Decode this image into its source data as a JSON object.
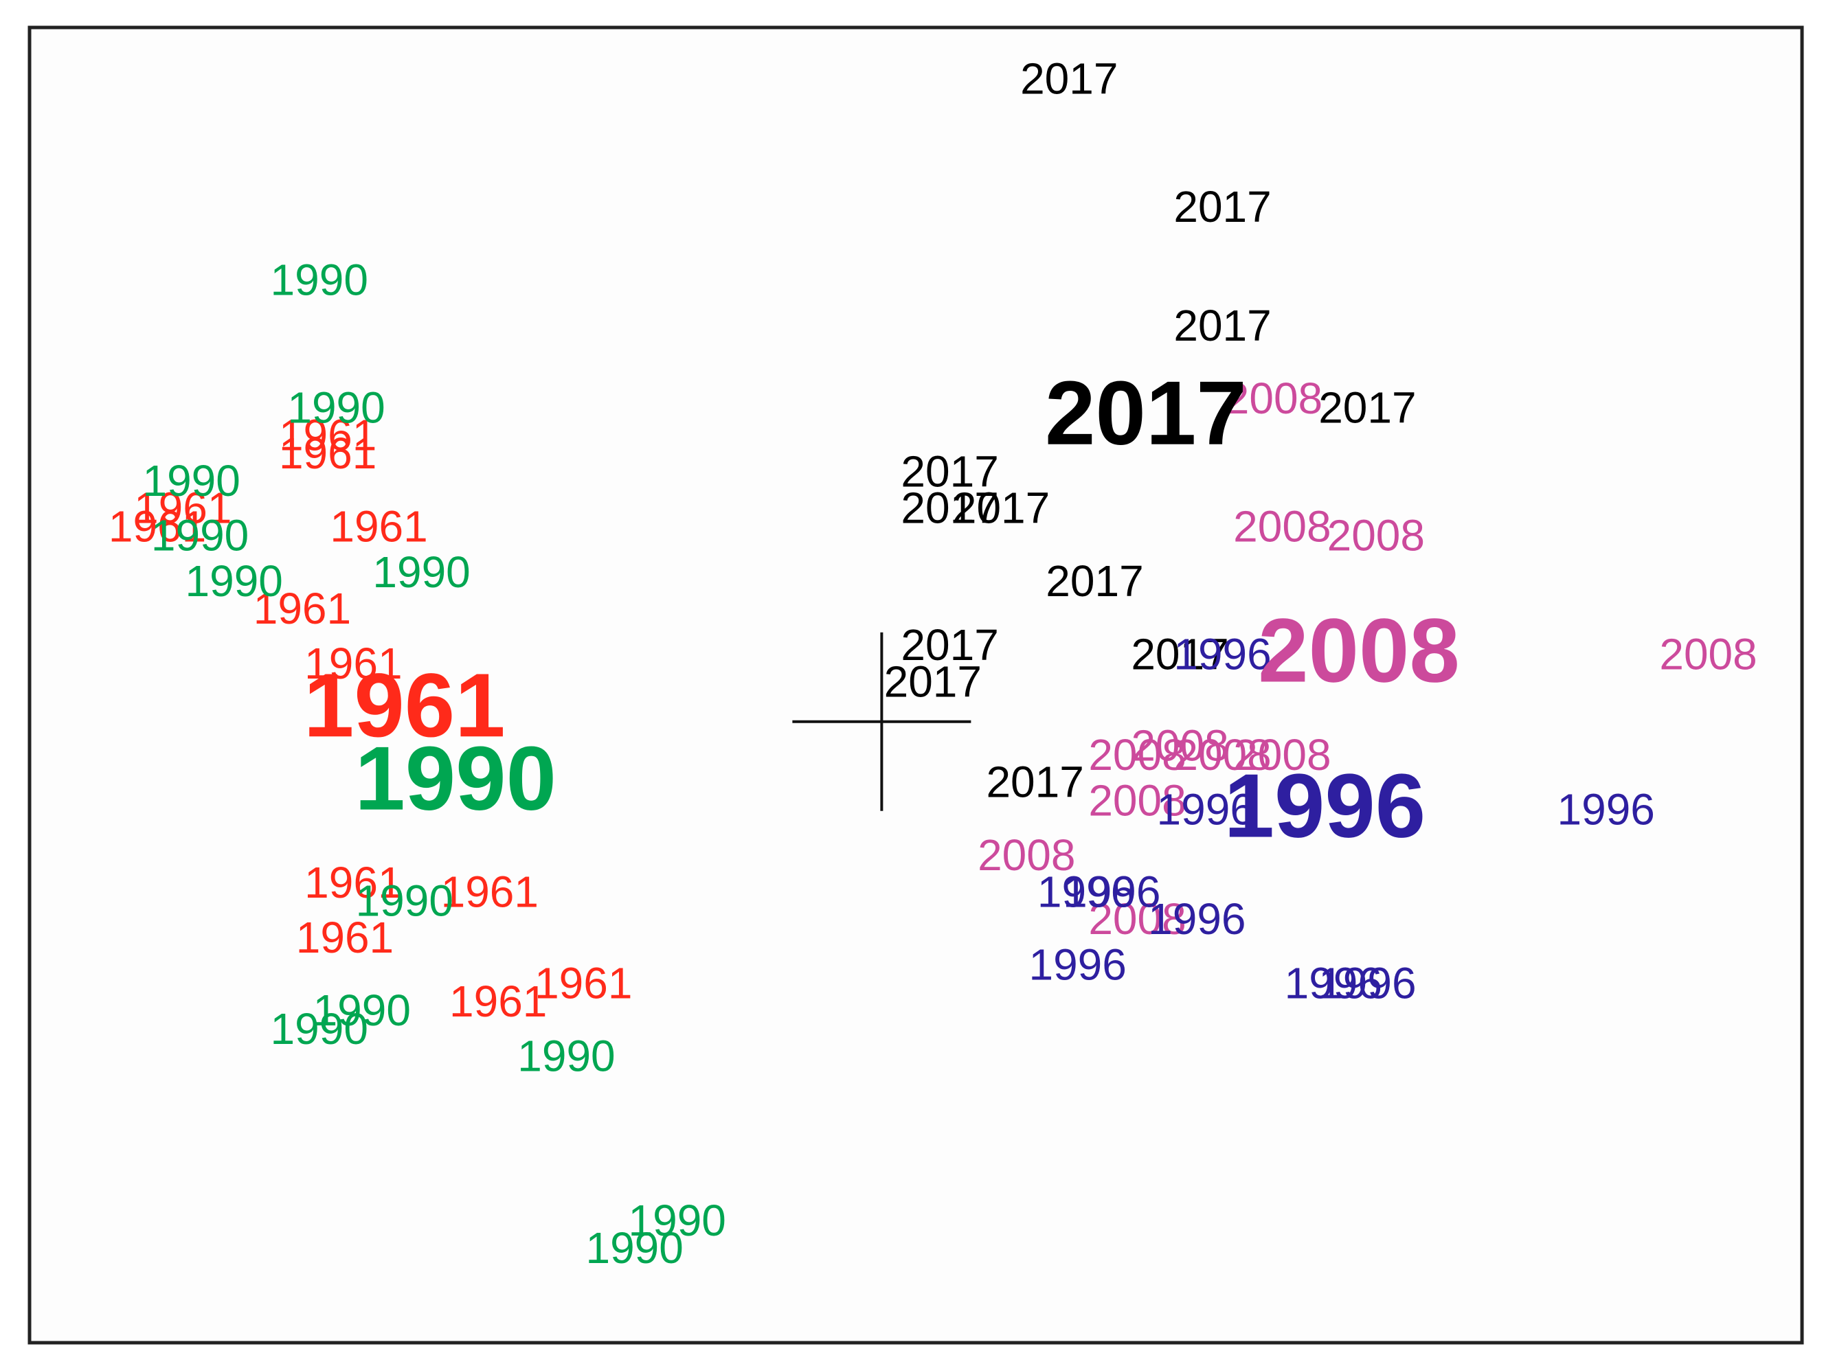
{
  "chart_data": {
    "type": "scatter",
    "title": "",
    "xlabel": "",
    "ylabel": "",
    "axes_visible": false,
    "grid": false,
    "legend": "none",
    "xlim": [
      -1.0,
      1.08
    ],
    "ylim": [
      -0.68,
      0.76
    ],
    "origin_marker": "cross at (0, 0)",
    "series": [
      {
        "label": "1961",
        "color": "#ff2a1a",
        "points": [
          {
            "x": -0.65,
            "y": 0.29
          },
          {
            "x": -0.65,
            "y": 0.31
          },
          {
            "x": -0.82,
            "y": 0.23
          },
          {
            "x": -0.85,
            "y": 0.21
          },
          {
            "x": -0.59,
            "y": 0.21
          },
          {
            "x": -0.68,
            "y": 0.12
          },
          {
            "x": -0.62,
            "y": 0.06
          },
          {
            "x": -0.62,
            "y": -0.18
          },
          {
            "x": -0.46,
            "y": -0.19
          },
          {
            "x": -0.63,
            "y": -0.24
          },
          {
            "x": -0.45,
            "y": -0.31
          },
          {
            "x": -0.35,
            "y": -0.29
          }
        ],
        "centroid": {
          "x": -0.56,
          "y": 0.01
        }
      },
      {
        "label": "1990",
        "color": "#00a651",
        "points": [
          {
            "x": -0.66,
            "y": 0.48
          },
          {
            "x": -0.64,
            "y": 0.34
          },
          {
            "x": -0.81,
            "y": 0.26
          },
          {
            "x": -0.8,
            "y": 0.2
          },
          {
            "x": -0.76,
            "y": 0.15
          },
          {
            "x": -0.54,
            "y": 0.16
          },
          {
            "x": -0.56,
            "y": -0.2
          },
          {
            "x": -0.61,
            "y": -0.32
          },
          {
            "x": -0.66,
            "y": -0.34
          },
          {
            "x": -0.37,
            "y": -0.37
          },
          {
            "x": -0.24,
            "y": -0.55
          },
          {
            "x": -0.29,
            "y": -0.58
          }
        ],
        "centroid": {
          "x": -0.5,
          "y": -0.07
        }
      },
      {
        "label": "2017",
        "color": "#000000",
        "points": [
          {
            "x": 0.22,
            "y": 0.7
          },
          {
            "x": 0.4,
            "y": 0.56
          },
          {
            "x": 0.4,
            "y": 0.43
          },
          {
            "x": 0.57,
            "y": 0.34
          },
          {
            "x": 0.08,
            "y": 0.27
          },
          {
            "x": 0.08,
            "y": 0.23
          },
          {
            "x": 0.14,
            "y": 0.23
          },
          {
            "x": 0.25,
            "y": 0.15
          },
          {
            "x": 0.08,
            "y": 0.08
          },
          {
            "x": 0.06,
            "y": 0.04
          },
          {
            "x": 0.35,
            "y": 0.07
          },
          {
            "x": 0.18,
            "y": -0.07
          }
        ],
        "centroid": {
          "x": 0.31,
          "y": 0.33
        }
      },
      {
        "label": "2008",
        "color": "#cc4a9c",
        "points": [
          {
            "x": 0.46,
            "y": 0.35
          },
          {
            "x": 0.47,
            "y": 0.21
          },
          {
            "x": 0.58,
            "y": 0.2
          },
          {
            "x": 0.97,
            "y": 0.07
          },
          {
            "x": 0.3,
            "y": -0.04
          },
          {
            "x": 0.35,
            "y": -0.03
          },
          {
            "x": 0.4,
            "y": -0.04
          },
          {
            "x": 0.47,
            "y": -0.04
          },
          {
            "x": 0.3,
            "y": -0.09
          },
          {
            "x": 0.17,
            "y": -0.15
          },
          {
            "x": 0.3,
            "y": -0.22
          }
        ],
        "centroid": {
          "x": 0.56,
          "y": 0.07
        }
      },
      {
        "label": "1996",
        "color": "#2e1fa0",
        "points": [
          {
            "x": 0.4,
            "y": 0.07
          },
          {
            "x": 0.38,
            "y": -0.1
          },
          {
            "x": 0.85,
            "y": -0.1
          },
          {
            "x": 0.24,
            "y": -0.19
          },
          {
            "x": 0.27,
            "y": -0.19
          },
          {
            "x": 0.37,
            "y": -0.22
          },
          {
            "x": 0.23,
            "y": -0.27
          },
          {
            "x": 0.53,
            "y": -0.29
          },
          {
            "x": 0.57,
            "y": -0.29
          }
        ],
        "centroid": {
          "x": 0.52,
          "y": -0.1
        }
      }
    ]
  }
}
